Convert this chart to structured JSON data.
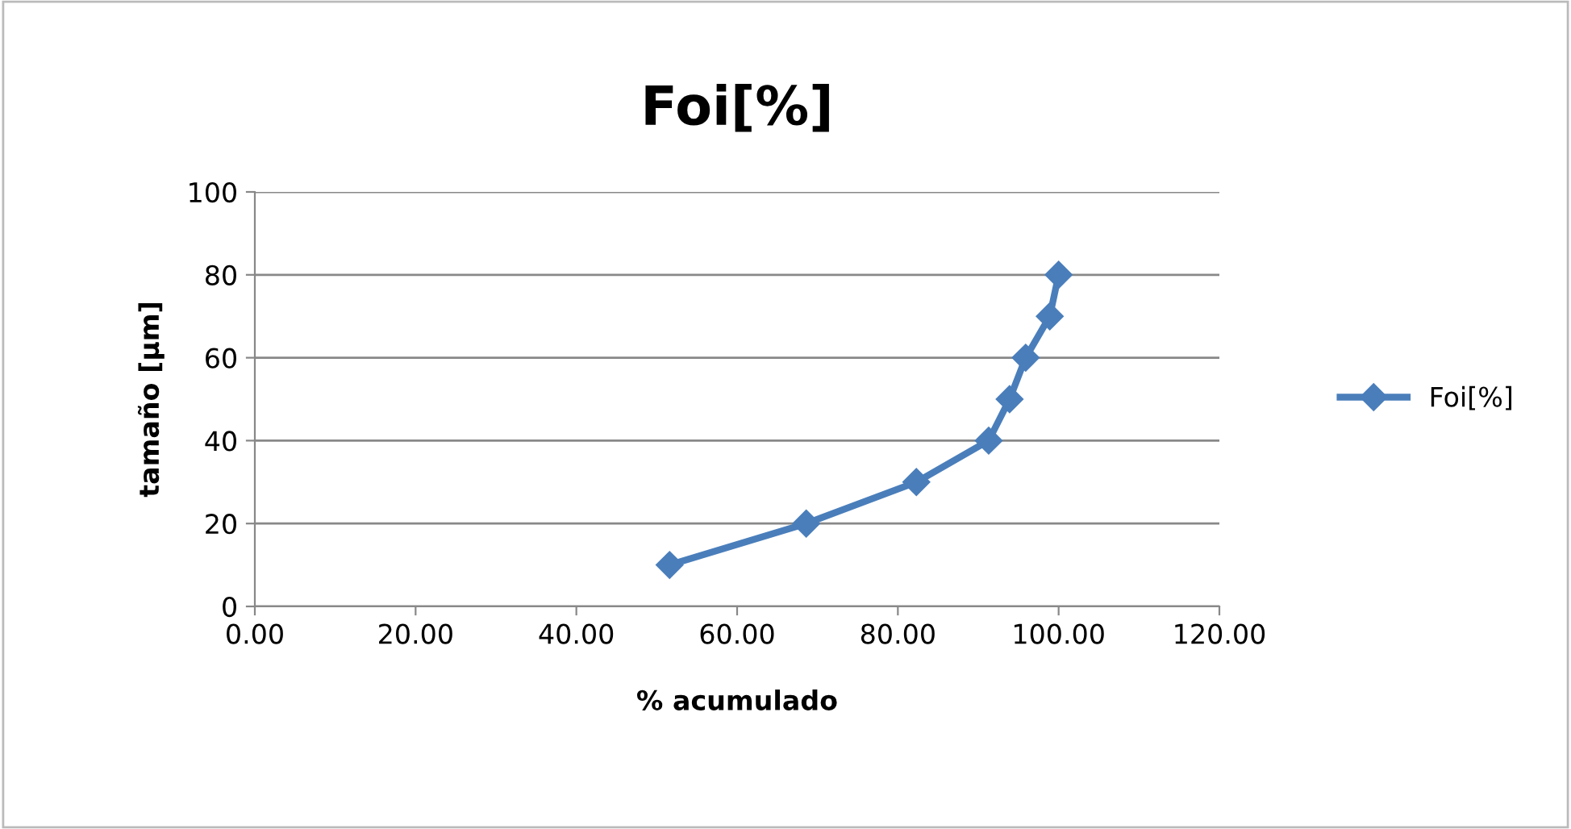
{
  "chart_data": {
    "type": "line",
    "title": "Foi[%]",
    "xlabel": "% acumulado",
    "ylabel": "tamaño [µm]",
    "series": [
      {
        "name": "Foi[%]",
        "color": "#4a7ebb",
        "x": [
          51.6,
          68.6,
          82.3,
          91.3,
          93.9,
          95.9,
          98.9,
          100
        ],
        "values": [
          10,
          20,
          30,
          40,
          50,
          60,
          70,
          80
        ]
      }
    ],
    "xlim": [
      0,
      120
    ],
    "xticks": [
      {
        "value": 0,
        "label": "0.00"
      },
      {
        "value": 20,
        "label": "20.00"
      },
      {
        "value": 40,
        "label": "40.00"
      },
      {
        "value": 60,
        "label": "60.00"
      },
      {
        "value": 80,
        "label": "80.00"
      },
      {
        "value": 100,
        "label": "100.00"
      },
      {
        "value": 120,
        "label": "120.00"
      }
    ],
    "ylim": [
      0,
      100
    ],
    "yticks": [
      0,
      20,
      40,
      60,
      80,
      100
    ],
    "grid": "y",
    "legend": "right",
    "marker": "diamond",
    "line_style": "solid"
  }
}
